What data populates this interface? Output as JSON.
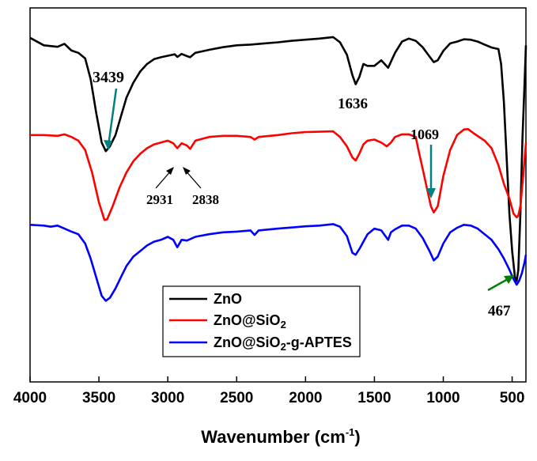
{
  "chart_data": {
    "type": "line",
    "xlabel": "Wavenumber (cm",
    "xlabel_sup": "-1",
    "xlabel_close": ")",
    "ylabel": "",
    "xlim": [
      4000,
      400
    ],
    "x_reversed": true,
    "x_ticks": [
      4000,
      3500,
      3000,
      2500,
      2000,
      1500,
      1000,
      500
    ],
    "x_tick_labels": [
      "4000",
      "3500",
      "3000",
      "2500",
      "2000",
      "1500",
      "1000",
      "500"
    ],
    "ylim": [
      0,
      100
    ],
    "y_ticks_shown": false,
    "grid": false,
    "legend_position": "lower-center",
    "series": [
      {
        "name": "ZnO",
        "color": "#000000",
        "points": [
          [
            4000,
            92
          ],
          [
            3900,
            90
          ],
          [
            3800,
            89.6
          ],
          [
            3750,
            90.4
          ],
          [
            3700,
            88.6
          ],
          [
            3650,
            88
          ],
          [
            3600,
            86.5
          ],
          [
            3560,
            81
          ],
          [
            3520,
            72
          ],
          [
            3480,
            64
          ],
          [
            3450,
            61.7
          ],
          [
            3420,
            63
          ],
          [
            3380,
            66
          ],
          [
            3340,
            71
          ],
          [
            3300,
            76
          ],
          [
            3250,
            80
          ],
          [
            3200,
            83
          ],
          [
            3150,
            85
          ],
          [
            3100,
            86.3
          ],
          [
            3050,
            86.8
          ],
          [
            3000,
            87.2
          ],
          [
            2950,
            87.6
          ],
          [
            2930,
            86.9
          ],
          [
            2900,
            87.7
          ],
          [
            2860,
            87.1
          ],
          [
            2838,
            86.8
          ],
          [
            2800,
            88
          ],
          [
            2700,
            88.8
          ],
          [
            2600,
            89.5
          ],
          [
            2500,
            90
          ],
          [
            2400,
            90.2
          ],
          [
            2300,
            90.5
          ],
          [
            2200,
            90.8
          ],
          [
            2100,
            91.2
          ],
          [
            2000,
            91.5
          ],
          [
            1900,
            91.8
          ],
          [
            1800,
            92.2
          ],
          [
            1750,
            90.8
          ],
          [
            1700,
            87.5
          ],
          [
            1660,
            82
          ],
          [
            1636,
            79.6
          ],
          [
            1610,
            81.5
          ],
          [
            1580,
            85
          ],
          [
            1550,
            84.5
          ],
          [
            1500,
            84.5
          ],
          [
            1450,
            86
          ],
          [
            1400,
            84
          ],
          [
            1350,
            88
          ],
          [
            1300,
            91
          ],
          [
            1250,
            91.8
          ],
          [
            1200,
            91.2
          ],
          [
            1150,
            89.5
          ],
          [
            1100,
            87
          ],
          [
            1069,
            85.5
          ],
          [
            1040,
            86
          ],
          [
            1000,
            88.5
          ],
          [
            950,
            90.5
          ],
          [
            900,
            91
          ],
          [
            850,
            91.6
          ],
          [
            800,
            91.5
          ],
          [
            750,
            91
          ],
          [
            700,
            90.2
          ],
          [
            650,
            89.4
          ],
          [
            600,
            89
          ],
          [
            580,
            85
          ],
          [
            560,
            75
          ],
          [
            540,
            60
          ],
          [
            520,
            45
          ],
          [
            500,
            35
          ],
          [
            480,
            28
          ],
          [
            467,
            27
          ],
          [
            455,
            30
          ],
          [
            440,
            45
          ],
          [
            425,
            65
          ],
          [
            410,
            80
          ],
          [
            400,
            90
          ]
        ]
      },
      {
        "name": "ZnO@SiO2",
        "color": "#ff0000",
        "points": [
          [
            4000,
            66
          ],
          [
            3900,
            66
          ],
          [
            3800,
            65.8
          ],
          [
            3750,
            66.2
          ],
          [
            3700,
            65.5
          ],
          [
            3650,
            64.5
          ],
          [
            3600,
            62
          ],
          [
            3550,
            56
          ],
          [
            3500,
            48
          ],
          [
            3460,
            43.3
          ],
          [
            3440,
            43.5
          ],
          [
            3400,
            47
          ],
          [
            3350,
            52
          ],
          [
            3300,
            56
          ],
          [
            3250,
            59
          ],
          [
            3200,
            61
          ],
          [
            3150,
            62.5
          ],
          [
            3100,
            63.5
          ],
          [
            3050,
            64
          ],
          [
            3000,
            64.5
          ],
          [
            2960,
            63.8
          ],
          [
            2931,
            62.5
          ],
          [
            2900,
            63.8
          ],
          [
            2860,
            63.2
          ],
          [
            2838,
            62.3
          ],
          [
            2800,
            64.5
          ],
          [
            2700,
            65.5
          ],
          [
            2600,
            65.8
          ],
          [
            2500,
            65.8
          ],
          [
            2400,
            65.5
          ],
          [
            2370,
            64.8
          ],
          [
            2340,
            65.5
          ],
          [
            2200,
            66
          ],
          [
            2100,
            66.5
          ],
          [
            2000,
            66.8
          ],
          [
            1900,
            66.9
          ],
          [
            1800,
            67
          ],
          [
            1750,
            65.5
          ],
          [
            1700,
            63
          ],
          [
            1660,
            60
          ],
          [
            1636,
            59.2
          ],
          [
            1610,
            61
          ],
          [
            1580,
            63.5
          ],
          [
            1550,
            64.5
          ],
          [
            1500,
            64.8
          ],
          [
            1450,
            64
          ],
          [
            1410,
            63
          ],
          [
            1380,
            64
          ],
          [
            1350,
            65.5
          ],
          [
            1300,
            66.2
          ],
          [
            1250,
            66.2
          ],
          [
            1200,
            65.5
          ],
          [
            1180,
            62
          ],
          [
            1150,
            57
          ],
          [
            1120,
            52
          ],
          [
            1090,
            47
          ],
          [
            1069,
            45.3
          ],
          [
            1040,
            47
          ],
          [
            1000,
            55
          ],
          [
            950,
            62
          ],
          [
            900,
            66
          ],
          [
            850,
            67.5
          ],
          [
            820,
            67.6
          ],
          [
            780,
            66.5
          ],
          [
            700,
            64.5
          ],
          [
            650,
            62.5
          ],
          [
            600,
            58
          ],
          [
            560,
            53
          ],
          [
            520,
            49
          ],
          [
            490,
            45
          ],
          [
            467,
            44
          ],
          [
            455,
            44.5
          ],
          [
            440,
            47
          ],
          [
            420,
            55
          ],
          [
            400,
            64
          ]
        ]
      },
      {
        "name": "ZnO@SiO2-g-APTES",
        "color": "#0000ff",
        "points": [
          [
            4000,
            42
          ],
          [
            3900,
            41.8
          ],
          [
            3850,
            41.5
          ],
          [
            3800,
            41.8
          ],
          [
            3750,
            41
          ],
          [
            3700,
            40.2
          ],
          [
            3650,
            39.5
          ],
          [
            3600,
            37
          ],
          [
            3560,
            33
          ],
          [
            3520,
            28
          ],
          [
            3480,
            23
          ],
          [
            3450,
            21.7
          ],
          [
            3420,
            22.5
          ],
          [
            3380,
            25
          ],
          [
            3340,
            28
          ],
          [
            3300,
            31
          ],
          [
            3250,
            33.5
          ],
          [
            3200,
            35
          ],
          [
            3150,
            36.5
          ],
          [
            3100,
            37.5
          ],
          [
            3050,
            38
          ],
          [
            3000,
            38.8
          ],
          [
            2960,
            38
          ],
          [
            2931,
            36
          ],
          [
            2900,
            38
          ],
          [
            2860,
            37.8
          ],
          [
            2800,
            38.8
          ],
          [
            2700,
            39.5
          ],
          [
            2600,
            40
          ],
          [
            2500,
            40.2
          ],
          [
            2400,
            40.5
          ],
          [
            2370,
            39.3
          ],
          [
            2340,
            40.5
          ],
          [
            2200,
            41
          ],
          [
            2100,
            41.3
          ],
          [
            2000,
            41.6
          ],
          [
            1900,
            41.8
          ],
          [
            1800,
            42.2
          ],
          [
            1750,
            41.5
          ],
          [
            1700,
            39
          ],
          [
            1660,
            34.5
          ],
          [
            1636,
            34
          ],
          [
            1610,
            35.5
          ],
          [
            1580,
            37.5
          ],
          [
            1550,
            39.5
          ],
          [
            1500,
            41
          ],
          [
            1450,
            40.5
          ],
          [
            1400,
            38
          ],
          [
            1380,
            40
          ],
          [
            1350,
            40.8
          ],
          [
            1300,
            41.8
          ],
          [
            1250,
            41.8
          ],
          [
            1200,
            41
          ],
          [
            1150,
            38.5
          ],
          [
            1100,
            35
          ],
          [
            1069,
            32.5
          ],
          [
            1040,
            33.5
          ],
          [
            1000,
            37
          ],
          [
            950,
            40
          ],
          [
            900,
            41.2
          ],
          [
            850,
            42
          ],
          [
            800,
            41.8
          ],
          [
            750,
            41
          ],
          [
            700,
            39.5
          ],
          [
            650,
            38
          ],
          [
            600,
            35.5
          ],
          [
            560,
            33
          ],
          [
            520,
            30
          ],
          [
            490,
            27.5
          ],
          [
            467,
            26
          ],
          [
            450,
            27
          ],
          [
            430,
            29
          ],
          [
            410,
            32
          ],
          [
            400,
            34
          ]
        ]
      }
    ],
    "annotations": [
      {
        "text": "3439",
        "arrow_color": "#008080"
      },
      {
        "text": "1636",
        "arrow_color": ""
      },
      {
        "text": "1069",
        "arrow_color": "#008080"
      },
      {
        "text": "2931",
        "arrow_color": "#000000"
      },
      {
        "text": "2838",
        "arrow_color": "#000000"
      },
      {
        "text": "467",
        "arrow_color": "#008000"
      }
    ],
    "legend": [
      {
        "label": "ZnO",
        "color": "#000000"
      },
      {
        "label_main": "ZnO@SiO",
        "sub": "2",
        "suffix": "",
        "color": "#ff0000"
      },
      {
        "label_main": "ZnO@SiO",
        "sub": "2",
        "suffix": "-g-APTES",
        "color": "#0000ff"
      }
    ]
  }
}
